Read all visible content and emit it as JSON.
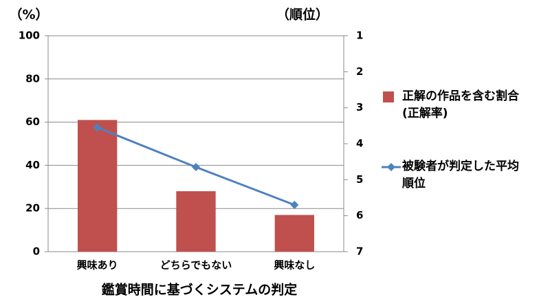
{
  "chart_data": {
    "type": "bar",
    "y_label": "（%）",
    "y2_label": "（順位）",
    "x_label": "鑑賞時間に基づくシステムの判定",
    "categories": [
      "興味あり",
      "どちらでもない",
      "興味なし"
    ],
    "series": [
      {
        "name": "正解の作品を含む割合(正解率)",
        "type": "bar",
        "color": "#c0504d",
        "values": [
          61,
          28,
          17
        ]
      },
      {
        "name": "被験者が判定した平均順位",
        "type": "line",
        "axis": "y2",
        "color": "#4f81bd",
        "values": [
          3.55,
          4.65,
          5.7
        ]
      }
    ],
    "ylim": [
      0,
      100
    ],
    "yticks": [
      0,
      20,
      40,
      60,
      80,
      100
    ],
    "y2lim": [
      7,
      1
    ],
    "y2ticks": [
      1,
      2,
      3,
      4,
      5,
      6,
      7
    ],
    "grid": true
  }
}
